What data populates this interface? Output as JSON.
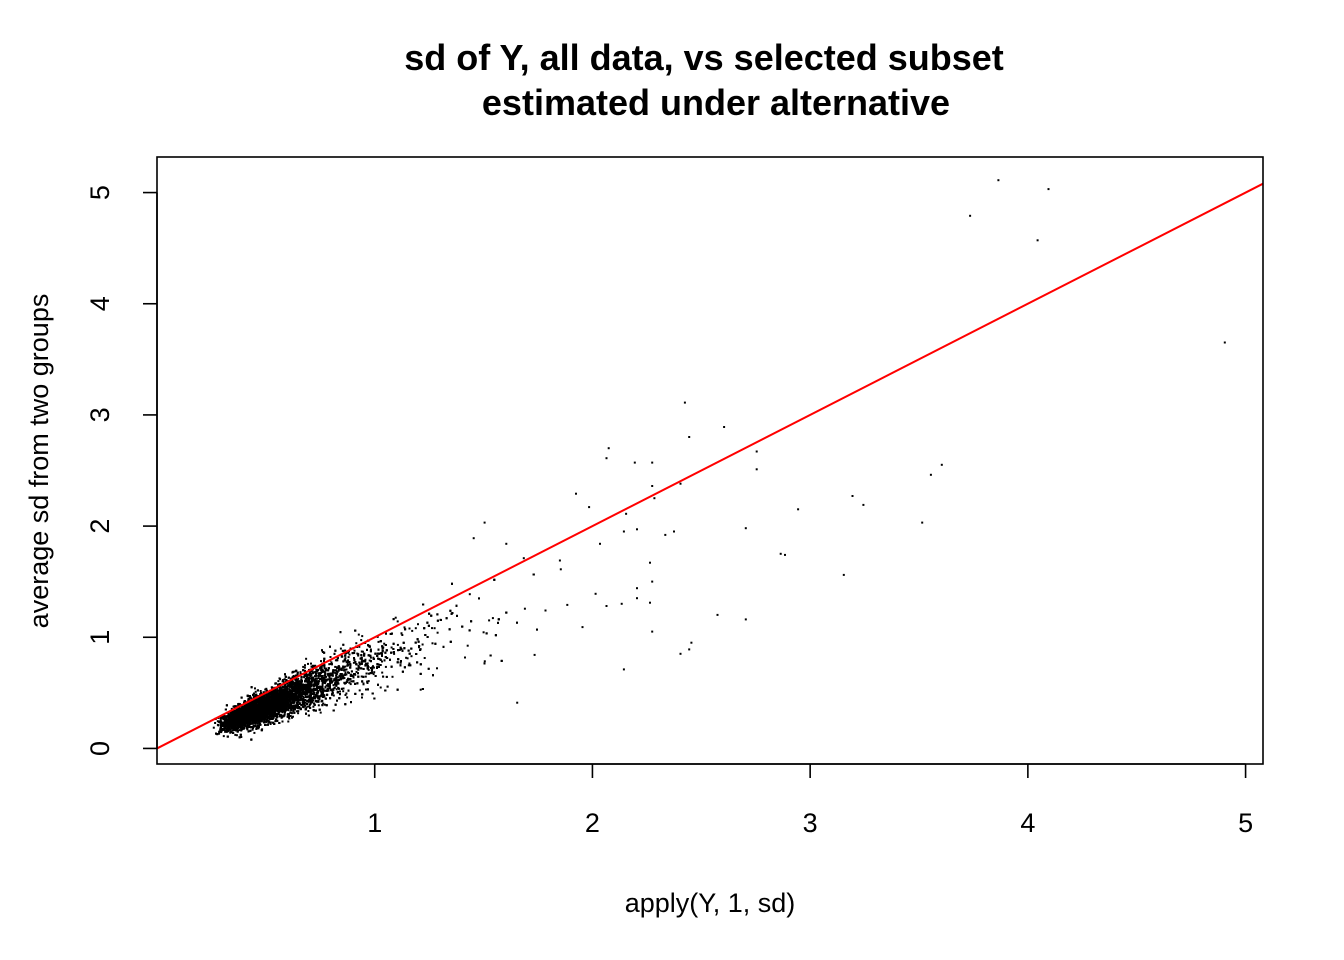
{
  "chart_data": {
    "type": "scatter",
    "title": "sd of Y, all data, vs selected subset",
    "subtitle": "estimated under alternative",
    "xlabel": "apply(Y, 1, sd)",
    "ylabel": "average sd from two groups",
    "xlim": [
      0.0,
      5.08
    ],
    "ylim": [
      -0.14,
      5.32
    ],
    "x_ticks": [
      1,
      2,
      3,
      4,
      5
    ],
    "x_tick_labels": [
      "1",
      "2",
      "3",
      "4",
      "5"
    ],
    "y_ticks": [
      0,
      1,
      2,
      3,
      4,
      5
    ],
    "y_tick_labels": [
      "0",
      "1",
      "2",
      "3",
      "4",
      "5"
    ],
    "grid": false,
    "point_color": "#000000",
    "reference_line": {
      "intercept": 0,
      "slope": 1,
      "color": "#ff0000"
    },
    "dense_cluster": {
      "description_of_points": "about 9000 genes concentrated along the diagonal",
      "x_range": [
        0.2,
        1.9
      ],
      "y_range": [
        0.06,
        2.05
      ]
    },
    "outliers": [
      {
        "x": 3.86,
        "y": 5.12
      },
      {
        "x": 4.09,
        "y": 5.04
      },
      {
        "x": 3.73,
        "y": 4.8
      },
      {
        "x": 4.04,
        "y": 4.58
      },
      {
        "x": 4.9,
        "y": 3.66
      },
      {
        "x": 2.42,
        "y": 3.12
      },
      {
        "x": 2.44,
        "y": 2.81
      },
      {
        "x": 2.6,
        "y": 2.9
      },
      {
        "x": 2.75,
        "y": 2.68
      },
      {
        "x": 2.75,
        "y": 2.52
      },
      {
        "x": 2.07,
        "y": 2.71
      },
      {
        "x": 2.06,
        "y": 2.62
      },
      {
        "x": 2.19,
        "y": 2.58
      },
      {
        "x": 2.27,
        "y": 2.58
      },
      {
        "x": 2.27,
        "y": 2.37
      },
      {
        "x": 2.28,
        "y": 2.26
      },
      {
        "x": 2.4,
        "y": 2.39
      },
      {
        "x": 3.6,
        "y": 2.56
      },
      {
        "x": 3.55,
        "y": 2.47
      },
      {
        "x": 3.19,
        "y": 2.28
      },
      {
        "x": 3.24,
        "y": 2.2
      },
      {
        "x": 2.94,
        "y": 2.16
      },
      {
        "x": 3.51,
        "y": 2.04
      },
      {
        "x": 2.7,
        "y": 1.99
      },
      {
        "x": 2.86,
        "y": 1.76
      },
      {
        "x": 2.88,
        "y": 1.75
      },
      {
        "x": 3.15,
        "y": 1.57
      },
      {
        "x": 1.92,
        "y": 2.3
      },
      {
        "x": 1.98,
        "y": 2.18
      },
      {
        "x": 2.15,
        "y": 2.12
      },
      {
        "x": 2.14,
        "y": 1.96
      },
      {
        "x": 2.2,
        "y": 1.98
      },
      {
        "x": 2.33,
        "y": 1.93
      },
      {
        "x": 2.37,
        "y": 1.96
      },
      {
        "x": 2.03,
        "y": 1.85
      },
      {
        "x": 2.26,
        "y": 1.68
      },
      {
        "x": 2.2,
        "y": 1.45
      },
      {
        "x": 2.2,
        "y": 1.36
      },
      {
        "x": 2.27,
        "y": 1.51
      },
      {
        "x": 2.26,
        "y": 1.32
      },
      {
        "x": 2.06,
        "y": 1.29
      },
      {
        "x": 2.01,
        "y": 1.4
      },
      {
        "x": 2.13,
        "y": 1.31
      },
      {
        "x": 2.27,
        "y": 1.06
      },
      {
        "x": 2.4,
        "y": 0.86
      },
      {
        "x": 2.44,
        "y": 0.9
      },
      {
        "x": 2.45,
        "y": 0.96
      },
      {
        "x": 2.57,
        "y": 1.21
      },
      {
        "x": 2.7,
        "y": 1.17
      },
      {
        "x": 2.14,
        "y": 0.72
      },
      {
        "x": 1.65,
        "y": 0.42
      },
      {
        "x": 1.73,
        "y": 0.85
      },
      {
        "x": 1.68,
        "y": 1.72
      },
      {
        "x": 1.85,
        "y": 1.62
      },
      {
        "x": 1.95,
        "y": 1.1
      },
      {
        "x": 1.78,
        "y": 1.25
      },
      {
        "x": 1.88,
        "y": 1.3
      },
      {
        "x": 1.6,
        "y": 1.85
      },
      {
        "x": 1.5,
        "y": 2.04
      },
      {
        "x": 1.45,
        "y": 1.9
      }
    ]
  }
}
